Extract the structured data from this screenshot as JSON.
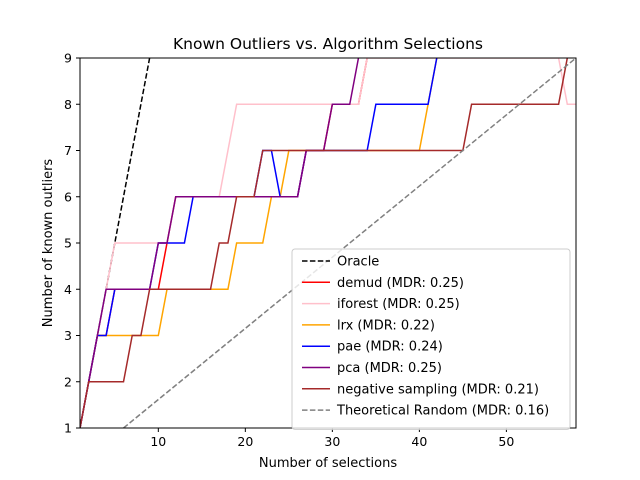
{
  "chart_data": {
    "type": "line",
    "title": "Known Outliers vs. Algorithm Selections",
    "xlabel": "Number of selections",
    "ylabel": "Number of known outliers",
    "xlim": [
      1,
      58
    ],
    "ylim": [
      1,
      9
    ],
    "x_ticks": [
      10,
      20,
      30,
      40,
      50
    ],
    "y_ticks": [
      1,
      2,
      3,
      4,
      5,
      6,
      7,
      8,
      9
    ],
    "grid": false,
    "legend_position": "lower-right",
    "series": [
      {
        "name": "Oracle",
        "color": "#000000",
        "dash": "dashed",
        "points": [
          [
            1,
            1
          ],
          [
            9,
            9
          ]
        ]
      },
      {
        "name": "demud (MDR: 0.25)",
        "color": "#ff0000",
        "dash": "solid",
        "points": [
          [
            1,
            1
          ],
          [
            2,
            2
          ],
          [
            3,
            3
          ],
          [
            4,
            3
          ],
          [
            5,
            4
          ],
          [
            10,
            4
          ],
          [
            11,
            5
          ],
          [
            12,
            6
          ],
          [
            18,
            6
          ],
          [
            19,
            6
          ],
          [
            26,
            6
          ],
          [
            27,
            7
          ],
          [
            29,
            7
          ],
          [
            30,
            8
          ],
          [
            33,
            8
          ],
          [
            34,
            9
          ]
        ]
      },
      {
        "name": "iforest (MDR: 0.25)",
        "color": "#ffc0cb",
        "dash": "solid",
        "points": [
          [
            1,
            1
          ],
          [
            2,
            2
          ],
          [
            3,
            3
          ],
          [
            4,
            4
          ],
          [
            5,
            5
          ],
          [
            9,
            5
          ],
          [
            10,
            5
          ],
          [
            11,
            5
          ],
          [
            12,
            6
          ],
          [
            17,
            6
          ],
          [
            18,
            7
          ],
          [
            19,
            8
          ],
          [
            33,
            8
          ],
          [
            34,
            9
          ],
          [
            42,
            9
          ],
          [
            56,
            9
          ],
          [
            57,
            8
          ],
          [
            58,
            8
          ]
        ]
      },
      {
        "name": "lrx (MDR: 0.22)",
        "color": "#ffa500",
        "dash": "solid",
        "points": [
          [
            1,
            1
          ],
          [
            2,
            2
          ],
          [
            3,
            3
          ],
          [
            4,
            3
          ],
          [
            5,
            3
          ],
          [
            10,
            3
          ],
          [
            11,
            4
          ],
          [
            17,
            4
          ],
          [
            18,
            4
          ],
          [
            19,
            5
          ],
          [
            22,
            5
          ],
          [
            23,
            6
          ],
          [
            24,
            6
          ],
          [
            25,
            7
          ],
          [
            40,
            7
          ],
          [
            41,
            8
          ],
          [
            42,
            9
          ]
        ]
      },
      {
        "name": "pae (MDR: 0.24)",
        "color": "#0000ff",
        "dash": "solid",
        "points": [
          [
            1,
            1
          ],
          [
            2,
            2
          ],
          [
            3,
            3
          ],
          [
            4,
            3
          ],
          [
            5,
            4
          ],
          [
            9,
            4
          ],
          [
            10,
            5
          ],
          [
            13,
            5
          ],
          [
            14,
            6
          ],
          [
            21,
            6
          ],
          [
            22,
            7
          ],
          [
            23,
            7
          ],
          [
            24,
            6
          ],
          [
            26,
            6
          ],
          [
            27,
            7
          ],
          [
            34,
            7
          ],
          [
            35,
            8
          ],
          [
            41,
            8
          ],
          [
            42,
            9
          ]
        ]
      },
      {
        "name": "pca (MDR: 0.25)",
        "color": "#800080",
        "dash": "solid",
        "points": [
          [
            1,
            1
          ],
          [
            2,
            2
          ],
          [
            3,
            3
          ],
          [
            4,
            4
          ],
          [
            9,
            4
          ],
          [
            10,
            5
          ],
          [
            11,
            5
          ],
          [
            12,
            6
          ],
          [
            14,
            6
          ],
          [
            15,
            6
          ],
          [
            26,
            6
          ],
          [
            27,
            7
          ],
          [
            29,
            7
          ],
          [
            30,
            8
          ],
          [
            32,
            8
          ],
          [
            33,
            9
          ]
        ]
      },
      {
        "name": "negative sampling (MDR: 0.21)",
        "color": "#a52a2a",
        "dash": "solid",
        "points": [
          [
            1,
            1
          ],
          [
            2,
            2
          ],
          [
            6,
            2
          ],
          [
            7,
            3
          ],
          [
            8,
            3
          ],
          [
            9,
            4
          ],
          [
            16,
            4
          ],
          [
            17,
            5
          ],
          [
            18,
            5
          ],
          [
            19,
            6
          ],
          [
            21,
            6
          ],
          [
            22,
            7
          ],
          [
            45,
            7
          ],
          [
            46,
            8
          ],
          [
            56,
            8
          ],
          [
            57,
            9
          ]
        ]
      },
      {
        "name": "Theoretical Random (MDR: 0.16)",
        "color": "#808080",
        "dash": "dashed",
        "points": [
          [
            6,
            1
          ],
          [
            58,
            9
          ]
        ]
      }
    ]
  }
}
